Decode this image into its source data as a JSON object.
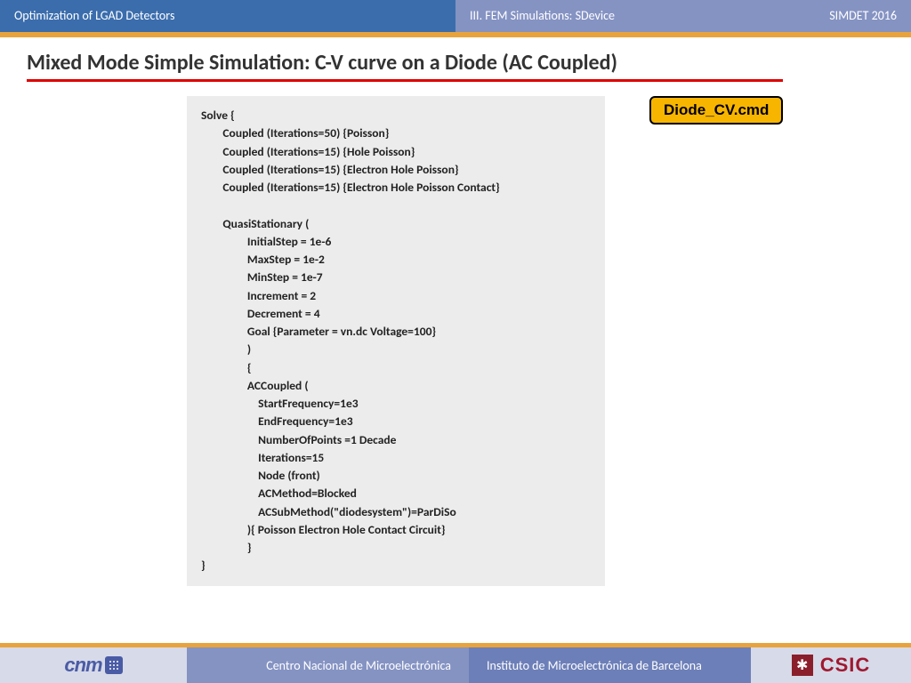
{
  "header": {
    "left": "Optimization of LGAD Detectors",
    "right_a": "III. FEM Simulations: SDevice",
    "right_b": "SIMDET 2016"
  },
  "title": "Mixed Mode Simple Simulation: C-V curve on a Diode (AC Coupled)",
  "code": "Solve {\n        Coupled (Iterations=50) {Poisson}\n        Coupled (Iterations=15) {Hole Poisson}\n        Coupled (Iterations=15) {Electron Hole Poisson}\n        Coupled (Iterations=15) {Electron Hole Poisson Contact}\n\n        QuasiStationary (\n                 InitialStep = 1e-6\n                 MaxStep = 1e-2\n                 MinStep = 1e-7\n                 Increment = 2\n                 Decrement = 4\n                 Goal {Parameter = vn.dc Voltage=100}\n                 )\n                 {\n                 ACCoupled (\n                     StartFrequency=1e3\n                     EndFrequency=1e3\n                     NumberOfPoints =1 Decade\n                     Iterations=15\n                     Node (front)\n                     ACMethod=Blocked\n                     ACSubMethod(\"diodesystem\")=ParDiSo\n                 ){ Poisson Electron Hole Contact Circuit}\n                 }\n}",
  "badge": "Diode_CV.cmd",
  "footer": {
    "mid1": "Centro Nacional de Microelectrónica",
    "mid2": "Instituto de Microelectrónica de Barcelona",
    "logo_l": "cnm",
    "logo_r": "CSIC"
  },
  "colors": {
    "header_left": "#3b6dad",
    "header_right": "#8593c3",
    "orange": "#e8a33d",
    "underline": "#d00",
    "code_bg": "#ececec",
    "badge_bg": "#f7b500",
    "csic": "#a01830"
  }
}
